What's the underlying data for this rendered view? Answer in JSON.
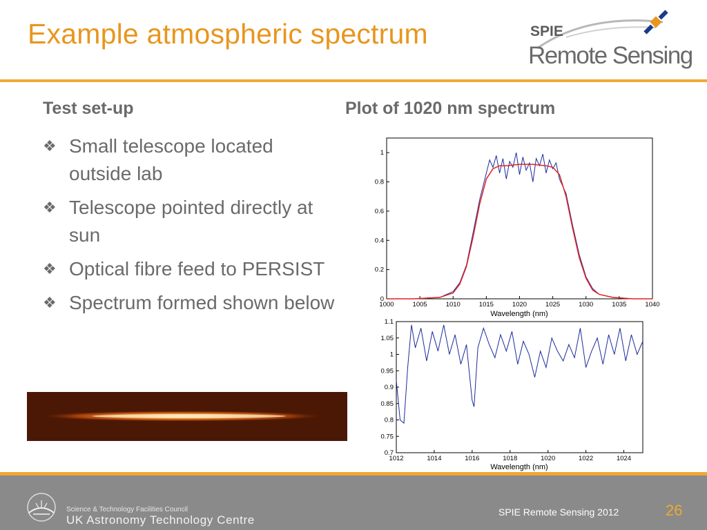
{
  "slide": {
    "title": "Example atmospheric spectrum",
    "logo": {
      "top_text": "SPIE",
      "bottom_text": "Remote Sensing"
    },
    "left": {
      "heading": "Test set-up",
      "bullets": [
        "Small telescope located outside lab",
        "Telescope pointed directly at sun",
        "Optical fibre feed to PERSIST",
        "Spectrum formed shown below"
      ]
    },
    "right": {
      "heading": "Plot of 1020 nm spectrum"
    }
  },
  "footer": {
    "org_small": "Science & Technology Facilities Council",
    "org_big": "UK Astronomy Technology Centre",
    "event": "SPIE Remote Sensing 2012",
    "page": "26"
  },
  "colors": {
    "accent": "#e8961e",
    "rule": "#f0a832",
    "footer_bg": "#8a8a8a",
    "fit_line": "#e02020",
    "data_line": "#1a2a9a"
  },
  "chart_data": [
    {
      "type": "line",
      "xlabel": "Wavelength (nm)",
      "xlim": [
        1000,
        1040
      ],
      "ylim": [
        0,
        1.1
      ],
      "xticks": [
        1000,
        1005,
        1010,
        1015,
        1020,
        1025,
        1030,
        1035,
        1040
      ],
      "yticks": [
        "0",
        "0.2",
        "0.4",
        "0.6",
        "0.8",
        "1"
      ],
      "series": [
        {
          "x": [
            1000,
            1004,
            1008,
            1010,
            1011,
            1012,
            1013,
            1014,
            1015,
            1016,
            1017,
            1018,
            1020,
            1022,
            1024,
            1025,
            1026,
            1027,
            1028,
            1029,
            1030,
            1031,
            1032,
            1034,
            1037,
            1040
          ],
          "y": [
            0.0,
            0.0,
            0.01,
            0.04,
            0.1,
            0.22,
            0.42,
            0.65,
            0.82,
            0.89,
            0.91,
            0.91,
            0.92,
            0.92,
            0.91,
            0.9,
            0.85,
            0.7,
            0.48,
            0.28,
            0.14,
            0.06,
            0.03,
            0.01,
            0.0,
            0.0
          ]
        },
        {
          "x": [
            1000,
            1004,
            1008,
            1010,
            1011,
            1012,
            1013,
            1014,
            1015,
            1015.5,
            1016,
            1016.5,
            1017,
            1017.5,
            1018,
            1018.5,
            1019,
            1019.5,
            1020,
            1020.5,
            1021,
            1021.5,
            1022,
            1022.5,
            1023,
            1023.5,
            1024,
            1024.5,
            1025,
            1025.5,
            1026,
            1027,
            1028,
            1029,
            1030,
            1031,
            1032,
            1034,
            1037,
            1040
          ],
          "y": [
            0.0,
            0.0,
            0.01,
            0.05,
            0.11,
            0.23,
            0.45,
            0.68,
            0.86,
            0.95,
            0.9,
            0.98,
            0.86,
            0.96,
            0.82,
            0.94,
            0.9,
            1.0,
            0.85,
            0.97,
            0.88,
            0.93,
            0.8,
            0.96,
            0.91,
            0.99,
            0.86,
            0.95,
            0.89,
            0.93,
            0.82,
            0.72,
            0.5,
            0.3,
            0.15,
            0.07,
            0.03,
            0.01,
            0.0,
            0.0
          ]
        }
      ]
    },
    {
      "type": "line",
      "xlabel": "Wavelength (nm)",
      "xlim": [
        1012,
        1025
      ],
      "ylim": [
        0.7,
        1.1
      ],
      "xticks": [
        1012,
        1014,
        1016,
        1018,
        1020,
        1022,
        1024
      ],
      "yticks": [
        "0.7",
        "0.75",
        "0.8",
        "0.85",
        "0.9",
        "0.95",
        "1",
        "1.05",
        "1.1"
      ],
      "series": [
        {
          "x": [
            1012,
            1012.2,
            1012.4,
            1012.6,
            1012.8,
            1013,
            1013.3,
            1013.6,
            1013.9,
            1014.2,
            1014.5,
            1014.8,
            1015.1,
            1015.4,
            1015.7,
            1016,
            1016.1,
            1016.3,
            1016.6,
            1016.9,
            1017.2,
            1017.5,
            1017.8,
            1018.1,
            1018.4,
            1018.7,
            1019,
            1019.3,
            1019.6,
            1019.9,
            1020.2,
            1020.5,
            1020.8,
            1021.1,
            1021.4,
            1021.7,
            1022,
            1022.3,
            1022.6,
            1022.9,
            1023.2,
            1023.5,
            1023.8,
            1024.1,
            1024.4,
            1024.7,
            1025
          ],
          "y": [
            0.92,
            0.8,
            0.79,
            0.96,
            1.09,
            1.02,
            1.08,
            0.98,
            1.07,
            1.01,
            1.09,
            1.0,
            1.06,
            0.97,
            1.03,
            0.86,
            0.84,
            1.02,
            1.08,
            1.03,
            0.99,
            1.06,
            1.01,
            1.07,
            0.97,
            1.04,
            1.0,
            0.93,
            1.01,
            0.96,
            1.05,
            1.01,
            0.98,
            1.03,
            0.99,
            1.08,
            0.96,
            1.01,
            1.05,
            0.97,
            1.06,
            1.0,
            1.08,
            0.98,
            1.06,
            1.0,
            1.04
          ]
        }
      ]
    }
  ]
}
